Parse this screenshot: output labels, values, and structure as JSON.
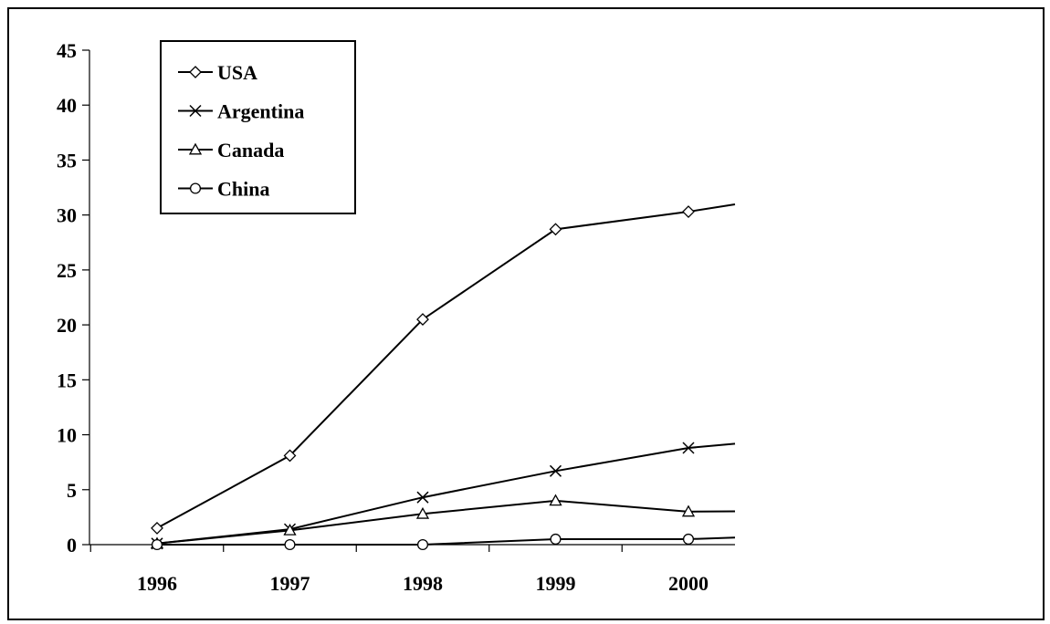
{
  "chart_data": {
    "type": "line",
    "title": "",
    "xlabel": "",
    "ylabel": "",
    "x": [
      "1996",
      "1997",
      "1998",
      "1999",
      "2000"
    ],
    "x_extends_past_last_category": true,
    "ylim": [
      0,
      45
    ],
    "yticks": [
      0,
      5,
      10,
      15,
      20,
      25,
      30,
      35,
      40,
      45
    ],
    "grid": false,
    "legend": {
      "placement": "top-left",
      "boxed": true
    },
    "series": [
      {
        "name": "USA",
        "marker": "diamond",
        "values": [
          1.5,
          8.1,
          20.5,
          28.7,
          30.3
        ],
        "continues_to": 32.2
      },
      {
        "name": "Argentina",
        "marker": "x",
        "values": [
          0.1,
          1.4,
          4.3,
          6.7,
          8.8
        ],
        "continues_to": 9.9
      },
      {
        "name": "Canada",
        "marker": "triangle",
        "values": [
          0.1,
          1.3,
          2.8,
          4.0,
          3.0
        ],
        "continues_to": 3.1
      },
      {
        "name": "China",
        "marker": "circle",
        "values": [
          0,
          0,
          0,
          0.5,
          0.5
        ],
        "continues_to": 0.9
      }
    ]
  }
}
